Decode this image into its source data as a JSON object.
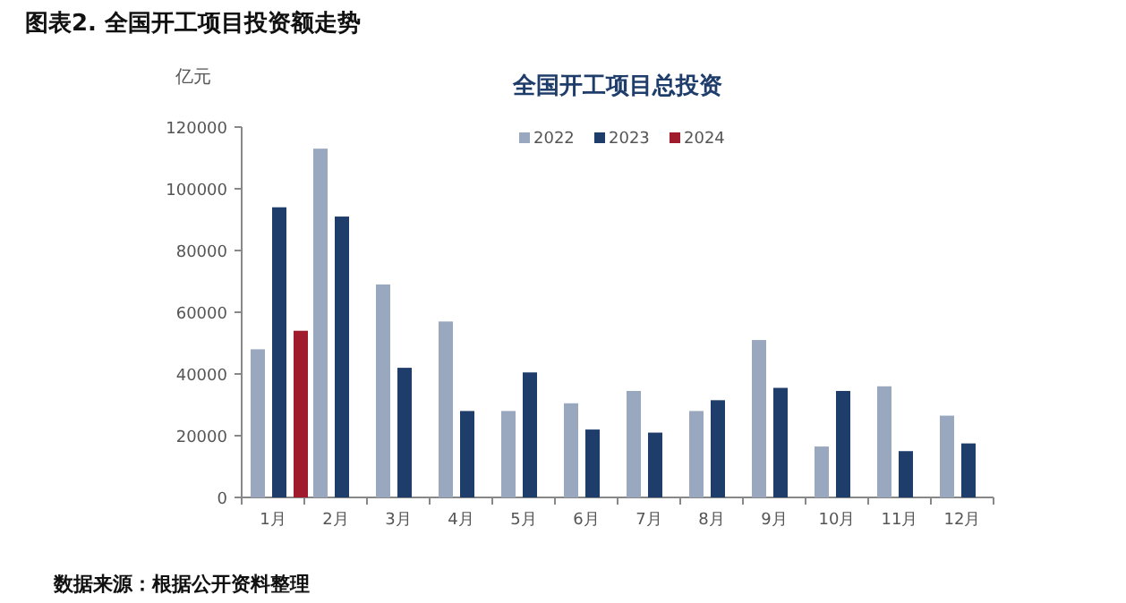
{
  "chart_data": {
    "type": "bar",
    "title": "图表2.    全国开工项目投资额走势",
    "subtitle": "全国开工项目总投资",
    "ylabel": "亿元",
    "annotations": [
      "数据来源：根据公开资料整理"
    ],
    "categories": [
      "1月",
      "2月",
      "3月",
      "4月",
      "5月",
      "6月",
      "7月",
      "8月",
      "9月",
      "10月",
      "11月",
      "12月"
    ],
    "series": [
      {
        "name": "2022",
        "color": "#9aa8bf",
        "values": [
          48000,
          113000,
          69000,
          57000,
          28000,
          30500,
          34500,
          28000,
          51000,
          16500,
          36000,
          26500
        ]
      },
      {
        "name": "2023",
        "color": "#1f3d6b",
        "values": [
          94000,
          91000,
          42000,
          28000,
          40500,
          22000,
          21000,
          31500,
          35500,
          34500,
          15000,
          17500
        ]
      },
      {
        "name": "2024",
        "color": "#a01c2c",
        "values": [
          54000,
          null,
          null,
          null,
          null,
          null,
          null,
          null,
          null,
          null,
          null,
          null
        ]
      }
    ],
    "ylim": [
      0,
      120000
    ],
    "yticks": [
      0,
      20000,
      40000,
      60000,
      80000,
      100000,
      120000
    ],
    "legend": "top",
    "grid": false
  }
}
